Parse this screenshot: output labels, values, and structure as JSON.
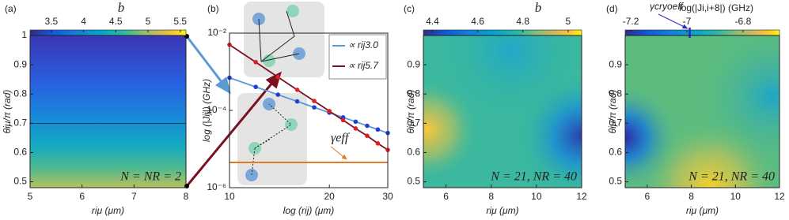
{
  "chart_data": [
    {
      "type": "heatmap",
      "label": "(a)",
      "title": "b",
      "clim": [
        3.17,
        5.59
      ],
      "cticks": [
        3.5,
        4,
        4.5,
        5,
        5.5
      ],
      "xlabel": "riμ (μm)",
      "ylabel": "θiμ/π (rad)",
      "xlim": [
        5,
        8
      ],
      "xticks": [
        5,
        6,
        7,
        8
      ],
      "ylim": [
        0.48,
        1
      ],
      "yticks": [
        0.5,
        0.6,
        0.7,
        0.8,
        0.9,
        1
      ],
      "hline": 0.7,
      "annotation": "N = NR = 2"
    },
    {
      "type": "line",
      "label": "(b)",
      "xlabel": "log (rij) (μm)",
      "ylabel": "log (|Jij|) (GHz)",
      "xscale": "log",
      "yscale": "log",
      "xlim": [
        10,
        30
      ],
      "xticks": [
        10,
        20,
        30
      ],
      "ylim": [
        1e-06,
        0.01
      ],
      "yticks": [
        {
          "value": 0.01,
          "label": "10⁻²"
        },
        {
          "value": 0.0001,
          "label": "10⁻⁴"
        },
        {
          "value": 1e-06,
          "label": "10⁻⁶"
        }
      ],
      "x": [
        10,
        12,
        14,
        16,
        18,
        20,
        22,
        24,
        26,
        28,
        30
      ],
      "series": [
        {
          "name": "∝ rij3.0",
          "color": "#5b9bd5",
          "marker_color": "#1f3fd8",
          "values": [
            0.0007,
            0.000405,
            0.000255,
            0.000171,
            0.00012,
            8.75e-05,
            6.6e-05,
            5.1e-05,
            4e-05,
            3.2e-05,
            2.6e-05
          ]
        },
        {
          "name": "∝ rij5.7",
          "color": "#7a1020",
          "marker_color": "#e02020",
          "values": [
            0.005,
            0.00177,
            0.00073,
            0.00034,
            0.000175,
            9.6e-05,
            5.6e-05,
            3.4e-05,
            2.2e-05,
            1.4e-05,
            9.5e-06
          ]
        }
      ],
      "gamma": 4.5e-06,
      "gamma_label": "γeff",
      "gamma_color": "#e07b25"
    },
    {
      "type": "heatmap",
      "label": "(c)",
      "title": "b",
      "clim": [
        4.36,
        5.06
      ],
      "cticks": [
        4.4,
        4.6,
        4.8,
        5
      ],
      "xlabel": "riμ (μm)",
      "ylabel": "θiμ/π (rad)",
      "xlim": [
        5,
        12
      ],
      "xticks": [
        6,
        8,
        10,
        12
      ],
      "ylim": [
        0.48,
        1
      ],
      "yticks": [
        0.5,
        0.6,
        0.7,
        0.8,
        0.9
      ],
      "annotation": "N = 21, NR = 40"
    },
    {
      "type": "heatmap",
      "label": "(d)",
      "title": "log(|Ji,i+8|) (GHz)",
      "clim": [
        -7.22,
        -6.67
      ],
      "cticks": [
        -7.2,
        -7,
        -6.8
      ],
      "xlabel": "riμ (μm)",
      "ylabel": "θiμ/π (rad)",
      "xlim": [
        5,
        12
      ],
      "xticks": [
        6,
        8,
        10,
        12
      ],
      "ylim": [
        0.48,
        1
      ],
      "yticks": [
        0.5,
        0.6,
        0.7,
        0.8,
        0.9
      ],
      "annotation": "N = 21, NR = 40",
      "marker": -6.99,
      "marker_label": "γcryoeff",
      "marker_color": "#2a2ad0"
    }
  ]
}
